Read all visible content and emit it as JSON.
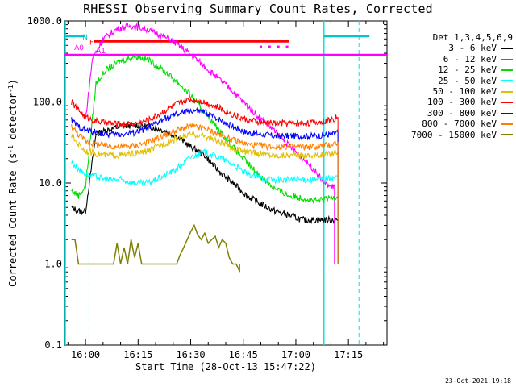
{
  "chart_data": {
    "type": "line",
    "title": "RHESSI Observing Summary Count Rates, Corrected",
    "xlabel": "Start Time (28-Oct-13 15:47:22)",
    "ylabel": "Corrected Count Rate (s",
    "ylabel_sup": "-1",
    "ylabel_mid": " detector",
    "ylabel_sup2": "-1",
    "ylabel_end": ")",
    "yscale": "log",
    "ylim": [
      0.1,
      1000
    ],
    "xlim_min": [
      -6,
      86
    ],
    "x_unit": "minutes after 16:00",
    "y_ticks": [
      "1000.0",
      "100.0",
      "10.0",
      "1.0",
      "0.1"
    ],
    "y_tick_values": [
      1000,
      100,
      10,
      1,
      0.1
    ],
    "x_ticks": [
      "16:00",
      "16:15",
      "16:30",
      "16:45",
      "17:00",
      "17:15"
    ],
    "x_tick_values": [
      0,
      15,
      30,
      45,
      60,
      75
    ],
    "legend_header": "Det 1,3,4,5,6,9",
    "series": [
      {
        "name": "3 - 6 keV",
        "color": "#000000",
        "x": [
          -4,
          -2,
          0,
          3,
          6,
          10,
          14,
          18,
          22,
          26,
          30,
          34,
          38,
          42,
          46,
          50,
          54,
          58,
          62,
          66,
          70,
          72
        ],
        "y": [
          5,
          4.5,
          4.5,
          40,
          45,
          50,
          52,
          50,
          45,
          38,
          28,
          22,
          14,
          10,
          7,
          5.5,
          4.5,
          4,
          3.5,
          3.5,
          3.5,
          3.5
        ]
      },
      {
        "name": "6 - 12 keV",
        "color": "#ff00ff",
        "x": [
          0,
          2,
          5,
          9,
          13,
          17,
          21,
          25,
          29,
          33,
          37,
          41,
          45,
          49,
          53,
          57,
          61,
          65,
          68,
          70,
          71
        ],
        "y": [
          60,
          350,
          600,
          800,
          870,
          800,
          680,
          560,
          420,
          300,
          210,
          150,
          100,
          68,
          48,
          32,
          22,
          15,
          10,
          9,
          9
        ]
      },
      {
        "name": "12 - 25 keV",
        "color": "#00dd00",
        "x": [
          -4,
          -2,
          0,
          3,
          6,
          10,
          14,
          18,
          22,
          26,
          30,
          34,
          38,
          42,
          46,
          50,
          54,
          58,
          62,
          66,
          70,
          72
        ],
        "y": [
          8,
          7,
          9,
          170,
          250,
          320,
          370,
          330,
          250,
          180,
          120,
          75,
          45,
          28,
          18,
          12,
          8.5,
          7,
          6.5,
          6,
          6.5,
          7
        ]
      },
      {
        "name": "25 - 50 keV",
        "color": "#00ffff",
        "x": [
          -4,
          -2,
          0,
          3,
          6,
          10,
          14,
          18,
          22,
          26,
          30,
          34,
          38,
          42,
          46,
          50,
          54,
          58,
          62,
          66,
          70,
          72
        ],
        "y": [
          18,
          15,
          13,
          12,
          11,
          11,
          10,
          10,
          12,
          15,
          21,
          24,
          21,
          17,
          13,
          11.5,
          11,
          11,
          11,
          11,
          11.5,
          12
        ]
      },
      {
        "name": "50 - 100 keV",
        "color": "#e0c000",
        "x": [
          -4,
          -2,
          0,
          3,
          6,
          10,
          14,
          18,
          22,
          26,
          30,
          34,
          38,
          42,
          46,
          50,
          54,
          58,
          62,
          66,
          70,
          72
        ],
        "y": [
          38,
          30,
          25,
          23,
          22,
          22,
          23,
          25,
          30,
          35,
          40,
          38,
          32,
          27,
          24,
          23,
          22,
          22,
          22,
          22,
          23,
          25
        ]
      },
      {
        "name": "100 - 300 keV",
        "color": "#ff0000",
        "x": [
          -4,
          -2,
          0,
          3,
          6,
          10,
          14,
          18,
          22,
          26,
          30,
          34,
          38,
          42,
          46,
          50,
          54,
          58,
          62,
          66,
          70,
          72
        ],
        "y": [
          100,
          80,
          65,
          58,
          55,
          53,
          54,
          60,
          75,
          95,
          108,
          100,
          85,
          70,
          60,
          56,
          55,
          55,
          55,
          56,
          60,
          65
        ]
      },
      {
        "name": "300 - 800 keV",
        "color": "#0000ff",
        "x": [
          -4,
          -2,
          0,
          3,
          6,
          10,
          14,
          18,
          22,
          26,
          30,
          34,
          38,
          42,
          46,
          50,
          54,
          58,
          62,
          66,
          70,
          72
        ],
        "y": [
          60,
          50,
          45,
          42,
          40,
          40,
          42,
          48,
          60,
          70,
          78,
          75,
          62,
          50,
          42,
          40,
          38,
          38,
          38,
          38,
          40,
          42
        ]
      },
      {
        "name": "800 - 7000 keV",
        "color": "#ff8000",
        "x": [
          -4,
          -2,
          0,
          3,
          6,
          10,
          14,
          18,
          22,
          26,
          30,
          34,
          38,
          42,
          46,
          50,
          54,
          58,
          62,
          66,
          70,
          72
        ],
        "y": [
          50,
          40,
          33,
          30,
          29,
          28,
          29,
          32,
          38,
          45,
          50,
          47,
          40,
          34,
          30,
          29,
          28,
          28,
          28,
          28,
          30,
          32
        ]
      },
      {
        "name": "7000 - 15000 keV",
        "color": "#808000",
        "x": [
          -4,
          -3,
          -2,
          8,
          9,
          10,
          11,
          12,
          13,
          14,
          15,
          16,
          17,
          26,
          27,
          28,
          29,
          30,
          31,
          32,
          33,
          34,
          35,
          36,
          37,
          38,
          39,
          40,
          41,
          42,
          43,
          44
        ],
        "y": [
          2,
          2,
          1,
          1,
          1.8,
          1,
          1.6,
          1,
          2,
          1.2,
          1.8,
          1,
          1,
          1,
          1.3,
          1.6,
          2,
          2.5,
          3,
          2.3,
          2,
          2.4,
          1.8,
          2,
          2.2,
          1.6,
          2,
          1.8,
          1.2,
          1,
          1,
          0.8
        ]
      }
    ],
    "flags": [
      {
        "label": "N",
        "color": "#00c8c8",
        "y": 650,
        "x_start": 0.5,
        "x_end": 2.5,
        "segments": [
          [
            -16,
            0
          ],
          [
            68,
            81
          ]
        ]
      },
      {
        "label": "F",
        "color": "#ff0000",
        "y": 560,
        "x_start": 2.5,
        "x_end": 58
      },
      {
        "label": "A0",
        "color": "#ff00ff",
        "y": 380,
        "x_start": 0,
        "x_end": 81
      },
      {
        "label": "A1",
        "color": "#ff00ff",
        "y": 380,
        "x_start": 3,
        "x_end": 4
      }
    ],
    "magenta_dots_x": [
      50,
      52.5,
      55,
      57.5
    ],
    "magenta_dots_y": 480,
    "vlines_solid_x": [
      -16,
      68
    ],
    "vlines_dashed_x": [
      1,
      78
    ]
  },
  "timestamp": "23-Oct-2021 19:18"
}
